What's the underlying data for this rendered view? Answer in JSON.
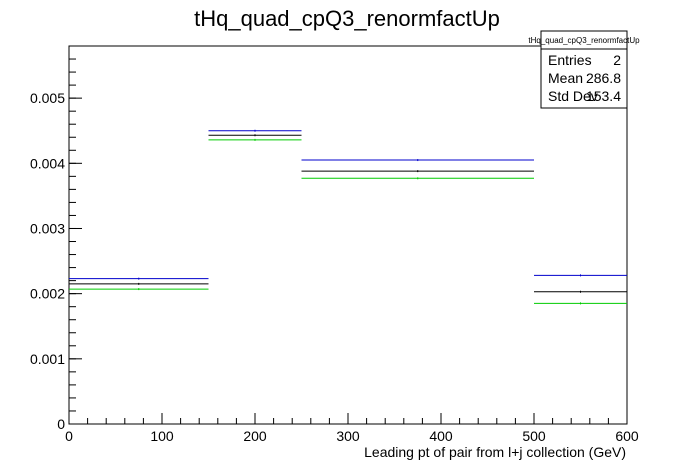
{
  "chart_data": {
    "type": "line",
    "title": "tHq_quad_cpQ3_renormfactUp",
    "xlabel": "Leading pt of pair from l+j collection (GeV)",
    "ylabel": "",
    "xlim": [
      0,
      600
    ],
    "ylim": [
      0,
      0.0058
    ],
    "x_ticks": [
      "0",
      "100",
      "200",
      "300",
      "400",
      "500",
      "600"
    ],
    "y_ticks": [
      "0",
      "0.001",
      "0.002",
      "0.003",
      "0.004",
      "0.005"
    ],
    "bin_edges": [
      0,
      150,
      250,
      500,
      600
    ],
    "series": [
      {
        "color": "#0000cc",
        "values": [
          0.00223,
          0.0045,
          0.00405,
          0.00228
        ]
      },
      {
        "color": "#000000",
        "values": [
          0.00215,
          0.00443,
          0.00388,
          0.00203
        ]
      },
      {
        "color": "#00cc00",
        "values": [
          0.00207,
          0.00436,
          0.00377,
          0.00185
        ]
      }
    ],
    "grid": false,
    "legend": "none"
  },
  "stats_box": {
    "title": "tHq_quad_cpQ3_renormfactUp",
    "rows": [
      {
        "label": "Entries",
        "value": "2"
      },
      {
        "label": "Mean",
        "value": "286.8"
      },
      {
        "label": "Std Dev",
        "value": "153.4"
      }
    ]
  }
}
